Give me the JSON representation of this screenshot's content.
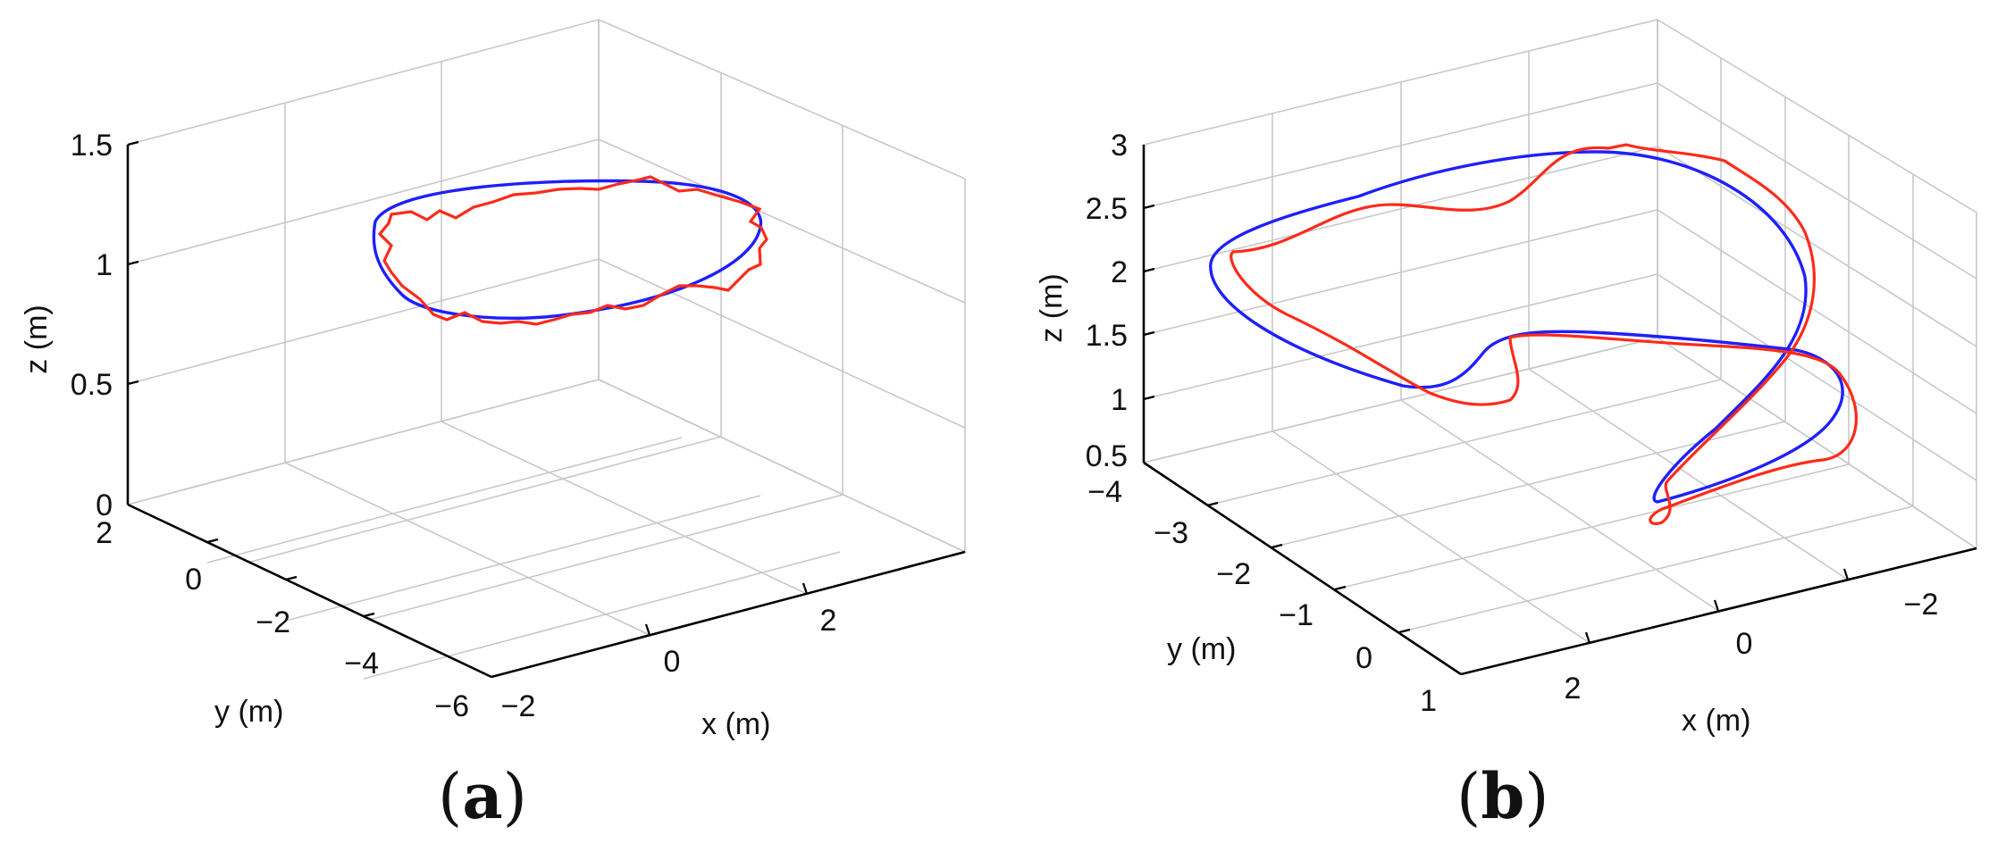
{
  "panels": [
    "a",
    "b"
  ],
  "colors": {
    "reference": "#1f1fff",
    "actual": "#ff2a1a",
    "grid": "#c8c8c8",
    "axis": "#000000"
  },
  "chart_data": [
    {
      "type": "line",
      "panel": "a",
      "xlabel": "x (m)",
      "ylabel": "y (m)",
      "zlabel": "z (m)",
      "xlim": [
        -2,
        4
      ],
      "ylim": [
        -6,
        2
      ],
      "zlim": [
        0,
        1.5
      ],
      "xticks": [
        -2,
        0,
        2
      ],
      "yticks": [
        2,
        0,
        -2,
        -4,
        -6
      ],
      "zticks": [
        0,
        0.5,
        1,
        1.5
      ],
      "xtick_labels": [
        "−2",
        "0",
        "2"
      ],
      "ytick_labels": [
        "2",
        "0",
        "−2",
        "−4",
        "−6"
      ],
      "ztick_labels": [
        "0",
        "0.5",
        "1",
        "1.5"
      ],
      "grid": true,
      "series": [
        {
          "color": "#1f1fff",
          "x": [
            2.0,
            1.41,
            0.0,
            -1.41,
            -2.0,
            -1.41,
            0.0,
            1.41,
            2.0
          ],
          "y": [
            -2.0,
            -0.59,
            0.0,
            -0.59,
            -2.0,
            -3.41,
            -4.0,
            -3.41,
            -2.0
          ],
          "z": [
            1.0,
            1.0,
            1.0,
            1.0,
            1.0,
            1.0,
            1.0,
            1.0,
            1.0
          ]
        },
        {
          "color": "#ff2a1a",
          "x": [
            2.05,
            1.45,
            0.02,
            -1.38,
            -2.03,
            -1.45,
            0.04,
            1.35,
            2.05
          ],
          "y": [
            -2.05,
            -0.6,
            0.05,
            -0.55,
            -2.0,
            -3.35,
            -4.05,
            -3.45,
            -2.05
          ],
          "z": [
            0.92,
            1.04,
            0.97,
            1.05,
            0.95,
            1.06,
            0.96,
            1.03,
            0.92
          ]
        }
      ]
    },
    {
      "type": "line",
      "panel": "b",
      "xlabel": "x (m)",
      "ylabel": "y (m)",
      "zlabel": "z (m)",
      "xlim": [
        -3,
        3
      ],
      "ylim": [
        -4,
        1
      ],
      "zlim": [
        0.5,
        3
      ],
      "xticks": [
        2,
        0,
        -2
      ],
      "yticks": [
        -4,
        -3,
        -2,
        -1,
        0,
        1
      ],
      "zticks": [
        0.5,
        1,
        1.5,
        2,
        2.5,
        3
      ],
      "xtick_labels": [
        "2",
        "0",
        "−2"
      ],
      "ytick_labels": [
        "−4",
        "−3",
        "−2",
        "−1",
        "0",
        "1"
      ],
      "ztick_labels": [
        "0.5",
        "1",
        "1.5",
        "2",
        "2.5",
        "3"
      ],
      "grid": true,
      "series": [
        {
          "color": "#1f1fff",
          "x": [
            1.5,
            0.6,
            -0.6,
            -1.6,
            -2.0,
            -1.6,
            -0.6,
            0.6,
            1.6,
            2.0,
            1.5
          ],
          "y": [
            -3.0,
            -2.6,
            -1.4,
            -0.3,
            0.3,
            0.1,
            -0.6,
            -1.6,
            -2.5,
            -3.1,
            -3.0
          ],
          "z": [
            2.3,
            2.6,
            2.4,
            1.8,
            1.2,
            1.1,
            1.4,
            1.3,
            1.1,
            1.5,
            2.3
          ]
        },
        {
          "color": "#ff2a1a",
          "x": [
            1.55,
            0.65,
            -0.55,
            -1.7,
            -2.1,
            -1.55,
            -0.55,
            0.65,
            1.7,
            2.05,
            1.55
          ],
          "y": [
            -3.05,
            -2.55,
            -1.35,
            -0.35,
            0.35,
            0.15,
            -0.55,
            -1.65,
            -2.45,
            -3.05,
            -3.05
          ],
          "z": [
            2.2,
            2.65,
            2.45,
            1.75,
            1.15,
            1.05,
            1.45,
            1.25,
            1.05,
            1.6,
            2.2
          ]
        }
      ]
    }
  ],
  "labels": {
    "a": "a",
    "b": "b"
  }
}
